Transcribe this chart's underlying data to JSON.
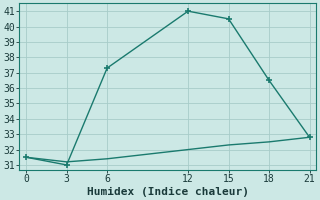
{
  "line1_x": [
    0,
    3,
    6,
    12,
    15,
    18,
    21
  ],
  "line1_y": [
    31.5,
    31.0,
    37.3,
    41.0,
    40.5,
    36.5,
    32.8
  ],
  "line2_x": [
    0,
    3,
    6,
    9,
    12,
    15,
    18,
    21
  ],
  "line2_y": [
    31.5,
    31.2,
    31.4,
    31.7,
    32.0,
    32.3,
    32.5,
    32.8
  ],
  "line_color": "#1a7a6e",
  "bg_color": "#cce8e5",
  "grid_color": "#a8ccc9",
  "xlabel": "Humidex (Indice chaleur)",
  "ylim": [
    30.7,
    41.5
  ],
  "xlim": [
    -0.5,
    21.5
  ],
  "yticks": [
    31,
    32,
    33,
    34,
    35,
    36,
    37,
    38,
    39,
    40,
    41
  ],
  "xticks": [
    0,
    3,
    6,
    12,
    15,
    18,
    21
  ],
  "font_color": "#1a3a3a",
  "marker": "+",
  "markersize": 4,
  "linewidth": 1.0,
  "xlabel_fontsize": 8,
  "tick_fontsize": 7
}
